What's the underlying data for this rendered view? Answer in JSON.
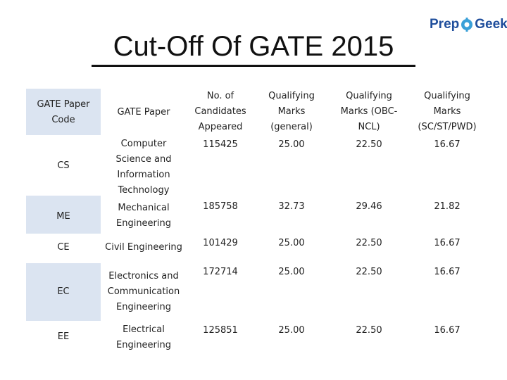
{
  "title": "Cut-Off Of GATE 2015",
  "logo": {
    "prep": "Prep",
    "geek": "Geek"
  },
  "headers": {
    "code": "GATE Paper Code",
    "paper": "GATE Paper",
    "candidates": "No. of Candidates Appeared",
    "general": "Qualifying Marks (general)",
    "obc": "Qualifying Marks (OBC-NCL)",
    "sc": "Qualifying Marks (SC/ST/PWD)"
  },
  "rows": [
    {
      "code": "CS",
      "paper": "Computer Science and Information Technology",
      "candidates": "115425",
      "general": "25.00",
      "obc": "22.50",
      "sc": "16.67"
    },
    {
      "code": "ME",
      "paper": "Mechanical Engineering",
      "candidates": "185758",
      "general": "32.73",
      "obc": "29.46",
      "sc": "21.82"
    },
    {
      "code": "CE",
      "paper": "Civil Engineering",
      "candidates": "101429",
      "general": "25.00",
      "obc": "22.50",
      "sc": "16.67"
    },
    {
      "code": "EC",
      "paper": "Electronics and Communication Engineering",
      "candidates": "172714",
      "general": "25.00",
      "obc": "22.50",
      "sc": "16.67"
    },
    {
      "code": "EE",
      "paper": "Electrical Engineering",
      "candidates": "125851",
      "general": "25.00",
      "obc": "22.50",
      "sc": "16.67"
    }
  ],
  "colors": {
    "code_band": "#dbe4f1",
    "logo": "#1f4e9c"
  }
}
